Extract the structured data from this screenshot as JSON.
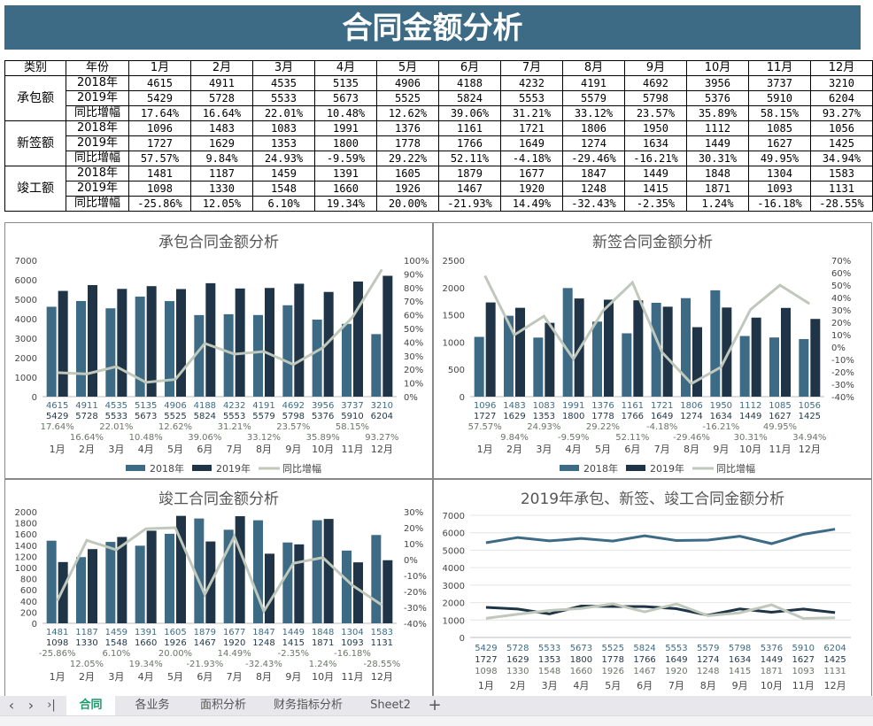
{
  "title": "合同金额分析",
  "table": {
    "headers": [
      "类别",
      "年份",
      "1月",
      "2月",
      "3月",
      "4月",
      "5月",
      "6月",
      "7月",
      "8月",
      "9月",
      "10月",
      "11月",
      "12月"
    ],
    "groups": [
      {
        "category": "承包额",
        "rows": [
          {
            "label": "2018年",
            "values": [
              "4615",
              "4911",
              "4535",
              "5135",
              "4906",
              "4188",
              "4232",
              "4191",
              "4692",
              "3956",
              "3737",
              "3210"
            ]
          },
          {
            "label": "2019年",
            "values": [
              "5429",
              "5728",
              "5533",
              "5673",
              "5525",
              "5824",
              "5553",
              "5579",
              "5798",
              "5376",
              "5910",
              "6204"
            ]
          },
          {
            "label": "同比增幅",
            "values": [
              "17.64%",
              "16.64%",
              "22.01%",
              "10.48%",
              "12.62%",
              "39.06%",
              "31.21%",
              "33.12%",
              "23.57%",
              "35.89%",
              "58.15%",
              "93.27%"
            ]
          }
        ]
      },
      {
        "category": "新签额",
        "rows": [
          {
            "label": "2018年",
            "values": [
              "1096",
              "1483",
              "1083",
              "1991",
              "1376",
              "1161",
              "1721",
              "1806",
              "1950",
              "1112",
              "1085",
              "1056"
            ]
          },
          {
            "label": "2019年",
            "values": [
              "1727",
              "1629",
              "1353",
              "1800",
              "1778",
              "1766",
              "1649",
              "1274",
              "1634",
              "1449",
              "1627",
              "1425"
            ]
          },
          {
            "label": "同比增幅",
            "values": [
              "57.57%",
              "9.84%",
              "24.93%",
              "-9.59%",
              "29.22%",
              "52.11%",
              "-4.18%",
              "-29.46%",
              "-16.21%",
              "30.31%",
              "49.95%",
              "34.94%"
            ]
          }
        ]
      },
      {
        "category": "竣工额",
        "rows": [
          {
            "label": "2018年",
            "values": [
              "1481",
              "1187",
              "1459",
              "1391",
              "1605",
              "1879",
              "1677",
              "1847",
              "1449",
              "1848",
              "1304",
              "1583"
            ]
          },
          {
            "label": "2019年",
            "values": [
              "1098",
              "1330",
              "1548",
              "1660",
              "1926",
              "1467",
              "1920",
              "1248",
              "1415",
              "1871",
              "1093",
              "1131"
            ]
          },
          {
            "label": "同比增幅",
            "values": [
              "-25.86%",
              "12.05%",
              "6.10%",
              "19.34%",
              "20.00%",
              "-21.93%",
              "14.49%",
              "-32.43%",
              "-2.35%",
              "1.24%",
              "-16.18%",
              "-28.55%"
            ]
          }
        ]
      }
    ]
  },
  "colors": {
    "s2018": "#3d6b85",
    "s2019": "#1f3547",
    "growth": "#c0c8bc",
    "header": "#3d6b85"
  },
  "chart_data": [
    {
      "type": "bar",
      "title": "承包合同金额分析",
      "categories": [
        "1月",
        "2月",
        "3月",
        "4月",
        "5月",
        "6月",
        "7月",
        "8月",
        "9月",
        "10月",
        "11月",
        "12月"
      ],
      "ylim": [
        0,
        7000
      ],
      "ystep": 1000,
      "y2lim": [
        0,
        100
      ],
      "y2step": 10,
      "legend": "bottom",
      "series": [
        {
          "name": "2018年",
          "values": [
            4615,
            4911,
            4535,
            5135,
            4906,
            4188,
            4232,
            4191,
            4692,
            3956,
            3737,
            3210
          ]
        },
        {
          "name": "2019年",
          "values": [
            5429,
            5728,
            5533,
            5673,
            5525,
            5824,
            5553,
            5579,
            5798,
            5376,
            5910,
            6204
          ]
        },
        {
          "name": "同比增幅",
          "axis": "right",
          "type": "line",
          "values": [
            17.64,
            16.64,
            22.01,
            10.48,
            12.62,
            39.06,
            31.21,
            33.12,
            23.57,
            35.89,
            58.15,
            93.27
          ]
        }
      ]
    },
    {
      "type": "bar",
      "title": "新签合同金额分析",
      "categories": [
        "1月",
        "2月",
        "3月",
        "4月",
        "5月",
        "6月",
        "7月",
        "8月",
        "9月",
        "10月",
        "11月",
        "12月"
      ],
      "ylim": [
        0,
        2500
      ],
      "ystep": 500,
      "y2lim": [
        -40,
        70
      ],
      "y2step": 10,
      "legend": "bottom",
      "series": [
        {
          "name": "2018年",
          "values": [
            1096,
            1483,
            1083,
            1991,
            1376,
            1161,
            1721,
            1806,
            1950,
            1112,
            1085,
            1056
          ]
        },
        {
          "name": "2019年",
          "values": [
            1727,
            1629,
            1353,
            1800,
            1778,
            1766,
            1649,
            1274,
            1634,
            1449,
            1627,
            1425
          ]
        },
        {
          "name": "同比增幅",
          "axis": "right",
          "type": "line",
          "values": [
            57.57,
            9.84,
            24.93,
            -9.59,
            29.22,
            52.11,
            -4.18,
            -29.46,
            -16.21,
            30.31,
            49.95,
            34.94
          ]
        }
      ]
    },
    {
      "type": "bar",
      "title": "竣工合同金额分析",
      "categories": [
        "1月",
        "2月",
        "3月",
        "4月",
        "5月",
        "6月",
        "7月",
        "8月",
        "9月",
        "10月",
        "11月",
        "12月"
      ],
      "ylim": [
        0,
        2000
      ],
      "ystep": 200,
      "y2lim": [
        -40,
        30
      ],
      "y2step": 10,
      "legend": "",
      "series": [
        {
          "name": "2018年",
          "values": [
            1481,
            1187,
            1459,
            1391,
            1605,
            1879,
            1677,
            1847,
            1449,
            1848,
            1304,
            1583
          ]
        },
        {
          "name": "2019年",
          "values": [
            1098,
            1330,
            1548,
            1660,
            1926,
            1467,
            1920,
            1248,
            1415,
            1871,
            1093,
            1131
          ]
        },
        {
          "name": "同比增幅",
          "axis": "right",
          "type": "line",
          "values": [
            -25.86,
            12.05,
            6.1,
            19.34,
            20.0,
            -21.93,
            14.49,
            -32.43,
            -2.35,
            1.24,
            -16.18,
            -28.55
          ]
        }
      ]
    },
    {
      "type": "line",
      "title": "2019年承包、新签、竣工合同金额分析",
      "categories": [
        "1月",
        "2月",
        "3月",
        "4月",
        "5月",
        "6月",
        "7月",
        "8月",
        "9月",
        "10月",
        "11月",
        "12月"
      ],
      "ylim": [
        0,
        7000
      ],
      "ystep": 1000,
      "series": [
        {
          "values": [
            5429,
            5728,
            5533,
            5673,
            5525,
            5824,
            5553,
            5579,
            5798,
            5376,
            5910,
            6204
          ],
          "color": "#3d6b85"
        },
        {
          "values": [
            1727,
            1629,
            1353,
            1800,
            1778,
            1766,
            1649,
            1274,
            1634,
            1449,
            1627,
            1425
          ],
          "color": "#1f3547"
        },
        {
          "values": [
            1098,
            1330,
            1548,
            1660,
            1926,
            1467,
            1920,
            1248,
            1415,
            1871,
            1093,
            1131
          ],
          "color": "#c0c8bc"
        }
      ]
    }
  ],
  "tabs": {
    "items": [
      "合同",
      "各业务",
      "面积分析",
      "财务指标分析",
      "Sheet2"
    ],
    "active": 0,
    "add": "+",
    "nav": [
      "‹",
      "›",
      "›|"
    ]
  }
}
